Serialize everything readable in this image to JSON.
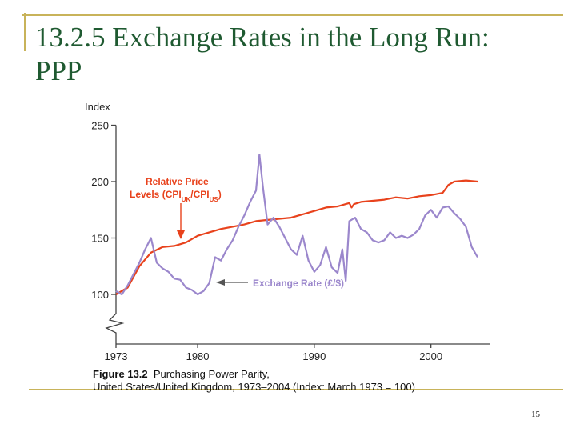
{
  "slide": {
    "title_line1": "13.2.5 Exchange Rates in the Long Run:",
    "title_line2": "PPP",
    "page_number": "15",
    "accent_color": "#c8b35a",
    "title_color": "#1f5a31"
  },
  "caption": {
    "figure_number": "Figure 13.2",
    "line1": "Purchasing Power Parity,",
    "line2": "United States/United Kingdom, 1973–2004 (Index: March 1973 = 100)"
  },
  "chart_data": {
    "type": "line",
    "ylabel": "Index",
    "ylim": [
      100,
      250
    ],
    "xlim": [
      1973,
      2004
    ],
    "y_ticks": [
      100,
      150,
      200,
      250
    ],
    "x_ticks": [
      1973,
      1980,
      1990,
      2000
    ],
    "axis_break": true,
    "grid": false,
    "series": [
      {
        "name": "Relative Price Levels (CPI_UK/CPI_US)",
        "label_text": "Relative Price Levels (CPI",
        "label_sub1": "UK",
        "label_mid": "/CPI",
        "label_sub2": "US",
        "label_end": ")",
        "color": "#e8421c",
        "x": [
          1973,
          1974,
          1975,
          1976,
          1977,
          1978,
          1979,
          1980,
          1981,
          1982,
          1983,
          1984,
          1985,
          1986,
          1987,
          1988,
          1989,
          1990,
          1991,
          1992,
          1993,
          1993.2,
          1993.4,
          1994,
          1995,
          1996,
          1997,
          1998,
          1999,
          2000,
          2001,
          2001.5,
          2002,
          2003,
          2004
        ],
        "values": [
          100,
          106,
          125,
          137,
          142,
          143,
          146,
          152,
          155,
          158,
          160,
          162,
          165,
          166,
          167,
          168,
          171,
          174,
          177,
          178,
          181,
          177,
          180,
          182,
          183,
          184,
          186,
          185,
          187,
          188,
          190,
          197,
          200,
          201,
          200
        ]
      },
      {
        "name": "Exchange Rate (£/$)",
        "label_text": "Exchange Rate (£/$)",
        "color": "#9b87cc",
        "x": [
          1973,
          1973.5,
          1974,
          1974.5,
          1975,
          1975.5,
          1976,
          1976.5,
          1977,
          1977.5,
          1978,
          1978.5,
          1979,
          1979.5,
          1980,
          1980.5,
          1981,
          1981.5,
          1982,
          1982.5,
          1983,
          1983.5,
          1984,
          1984.5,
          1985,
          1985.3,
          1985.6,
          1986,
          1986.5,
          1987,
          1987.5,
          1988,
          1988.5,
          1989,
          1989.5,
          1990,
          1990.5,
          1991,
          1991.5,
          1992,
          1992.4,
          1992.7,
          1993,
          1993.5,
          1994,
          1994.5,
          1995,
          1995.5,
          1996,
          1996.5,
          1997,
          1997.5,
          1998,
          1998.5,
          1999,
          1999.5,
          2000,
          2000.5,
          2001,
          2001.5,
          2002,
          2002.5,
          2003,
          2003.5,
          2004
        ],
        "values": [
          103,
          100,
          108,
          118,
          128,
          140,
          150,
          128,
          123,
          120,
          114,
          113,
          106,
          104,
          100,
          103,
          110,
          133,
          130,
          140,
          148,
          160,
          170,
          182,
          192,
          224,
          195,
          162,
          168,
          160,
          150,
          140,
          135,
          152,
          130,
          120,
          126,
          142,
          124,
          119,
          140,
          112,
          165,
          168,
          158,
          155,
          148,
          146,
          148,
          155,
          150,
          152,
          150,
          153,
          158,
          170,
          175,
          168,
          177,
          178,
          172,
          167,
          160,
          142,
          133
        ]
      }
    ]
  }
}
